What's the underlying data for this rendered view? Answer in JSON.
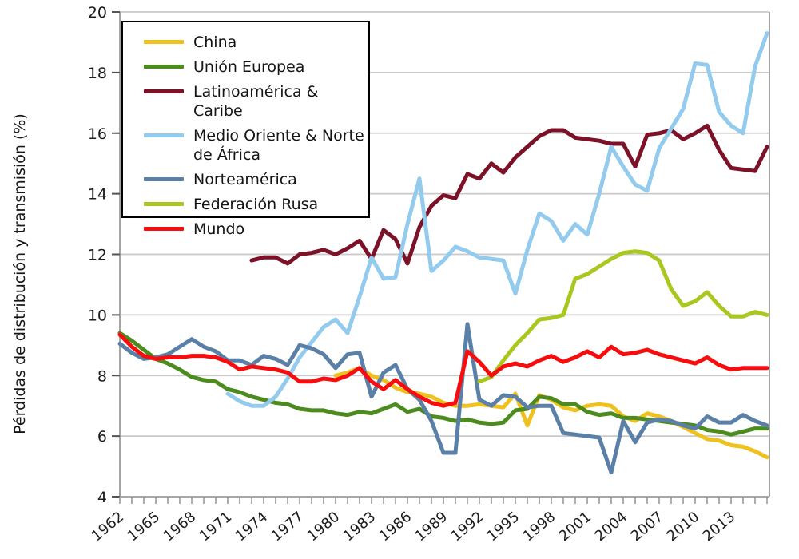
{
  "chart_data": {
    "type": "line",
    "title": "",
    "xlabel": "",
    "ylabel": "Pérdidas de distribución y transmisión (%)",
    "ylim": [
      4,
      20
    ],
    "yticks": [
      4,
      6,
      8,
      10,
      12,
      14,
      16,
      18,
      20
    ],
    "x_start": 1962,
    "x_end": 2016,
    "xtick_label_years": [
      1962,
      1965,
      1968,
      1971,
      1974,
      1977,
      1980,
      1983,
      1986,
      1989,
      1992,
      1995,
      1998,
      2001,
      2004,
      2007,
      2010,
      2013
    ],
    "grid": true,
    "legend_position": "top-left",
    "colors": {
      "grid": "#c9c9c9",
      "axis": "#9b9b9b",
      "ytick": "#555555",
      "text": "#1c1c1c"
    },
    "series": [
      {
        "id": "china",
        "name": "China",
        "color": "#eec11e",
        "start_year": 1980,
        "values": [
          8.0,
          8.1,
          8.25,
          8.0,
          7.85,
          7.6,
          7.45,
          7.4,
          7.3,
          7.1,
          7.0,
          7.0,
          7.05,
          7.0,
          6.95,
          7.4,
          6.35,
          7.35,
          7.2,
          6.95,
          6.85,
          7.0,
          7.05,
          7.0,
          6.65,
          6.5,
          6.75,
          6.65,
          6.5,
          6.3,
          6.1,
          5.9,
          5.85,
          5.7,
          5.65,
          5.5,
          5.3
        ]
      },
      {
        "id": "union-europea",
        "name": "Unión Europea",
        "color": "#4c8c1e",
        "start_year": 1962,
        "values": [
          9.4,
          9.15,
          8.85,
          8.55,
          8.4,
          8.2,
          7.95,
          7.85,
          7.8,
          7.55,
          7.45,
          7.3,
          7.2,
          7.1,
          7.05,
          6.9,
          6.85,
          6.85,
          6.75,
          6.7,
          6.8,
          6.75,
          6.9,
          7.05,
          6.8,
          6.9,
          6.65,
          6.6,
          6.5,
          6.55,
          6.45,
          6.4,
          6.45,
          6.85,
          6.9,
          7.3,
          7.25,
          7.05,
          7.05,
          6.8,
          6.7,
          6.75,
          6.6,
          6.6,
          6.55,
          6.5,
          6.45,
          6.4,
          6.35,
          6.2,
          6.15,
          6.05,
          6.15,
          6.25,
          6.25
        ]
      },
      {
        "id": "latinoamerica-caribe",
        "name": "Latinoamérica & Caribe",
        "color": "#7c1128",
        "start_year": 1973,
        "values": [
          11.8,
          11.9,
          11.9,
          11.7,
          12.0,
          12.05,
          12.15,
          12.0,
          12.2,
          12.45,
          11.85,
          12.8,
          12.5,
          11.7,
          12.9,
          13.6,
          13.95,
          13.85,
          14.65,
          14.5,
          15.0,
          14.7,
          15.2,
          15.55,
          15.9,
          16.1,
          16.1,
          15.85,
          15.8,
          15.75,
          15.65,
          15.65,
          14.9,
          15.95,
          16.0,
          16.1,
          15.8,
          16.0,
          16.25,
          15.45,
          14.85,
          14.8,
          14.75,
          15.55
        ]
      },
      {
        "id": "medio-oriente-norte-africa",
        "name": "Medio Oriente & Norte de África",
        "color": "#92cbee",
        "start_year": 1971,
        "values": [
          7.4,
          7.15,
          7.0,
          7.0,
          7.3,
          7.9,
          8.6,
          9.1,
          9.6,
          9.85,
          9.4,
          10.6,
          11.9,
          11.2,
          11.25,
          13.0,
          14.5,
          11.45,
          11.8,
          12.25,
          12.1,
          11.9,
          11.85,
          11.8,
          10.7,
          12.15,
          13.35,
          13.1,
          12.45,
          13.0,
          12.65,
          14.0,
          15.55,
          14.9,
          14.3,
          14.1,
          15.5,
          16.15,
          16.8,
          18.3,
          18.25,
          16.7,
          16.25,
          16.0,
          18.2,
          19.3
        ]
      },
      {
        "id": "norteamerica",
        "name": "Norteamérica",
        "color": "#5a80a8",
        "start_year": 1962,
        "values": [
          9.05,
          8.75,
          8.55,
          8.6,
          8.7,
          8.95,
          9.2,
          8.95,
          8.8,
          8.5,
          8.5,
          8.35,
          8.65,
          8.55,
          8.35,
          9.0,
          8.9,
          8.7,
          8.25,
          8.7,
          8.75,
          7.3,
          8.1,
          8.35,
          7.55,
          7.2,
          6.5,
          5.45,
          5.45,
          9.7,
          7.2,
          7.0,
          7.35,
          7.3,
          6.95,
          7.0,
          7.0,
          6.1,
          6.05,
          6.0,
          5.95,
          4.8,
          6.5,
          5.8,
          6.45,
          6.55,
          6.5,
          6.35,
          6.25,
          6.65,
          6.45,
          6.45,
          6.7,
          6.5,
          6.35
        ]
      },
      {
        "id": "federacion-rusa",
        "name": "Federación Rusa",
        "color": "#a9c81f",
        "start_year": 1992,
        "values": [
          7.8,
          7.95,
          8.5,
          9.0,
          9.4,
          9.85,
          9.9,
          10.0,
          11.2,
          11.35,
          11.6,
          11.85,
          12.05,
          12.1,
          12.05,
          11.8,
          10.85,
          10.3,
          10.45,
          10.75,
          10.3,
          9.95,
          9.95,
          10.1,
          10.0
        ]
      },
      {
        "id": "mundo",
        "name": "Mundo",
        "color": "#f70d0d",
        "start_year": 1962,
        "values": [
          9.35,
          8.95,
          8.65,
          8.55,
          8.6,
          8.6,
          8.65,
          8.65,
          8.6,
          8.45,
          8.2,
          8.3,
          8.25,
          8.2,
          8.1,
          7.8,
          7.8,
          7.9,
          7.85,
          8.0,
          8.25,
          7.8,
          7.55,
          7.85,
          7.55,
          7.3,
          7.1,
          7.0,
          7.1,
          8.8,
          8.45,
          8.0,
          8.3,
          8.4,
          8.3,
          8.5,
          8.65,
          8.45,
          8.6,
          8.8,
          8.6,
          8.95,
          8.7,
          8.75,
          8.85,
          8.7,
          8.6,
          8.5,
          8.4,
          8.6,
          8.35,
          8.2,
          8.25,
          8.25,
          8.25
        ]
      }
    ]
  }
}
